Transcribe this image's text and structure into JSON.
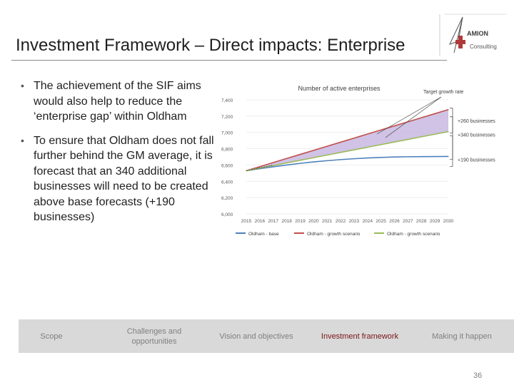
{
  "slide": {
    "title": "Investment Framework – Direct impacts: Enterprise",
    "page_number": "36"
  },
  "logo": {
    "name": "AMION",
    "tagline": "Consulting",
    "icon": "amion-compass-cross-logo",
    "accent": "#b03a3a"
  },
  "bullets": [
    "The achievement of the SIF aims would also help to reduce the ‘enterprise gap’ within Oldham",
    "To ensure that Oldham does not fall further behind the GM average, it is forecast that an 340 additional businesses will need to be created above base forecasts (+190 businesses)"
  ],
  "nav": {
    "items": [
      {
        "label": "Scope",
        "active": false
      },
      {
        "label": "Challenges and opportunities",
        "active": false
      },
      {
        "label": "Vision and objectives",
        "active": false
      },
      {
        "label": "Investment framework",
        "active": true
      },
      {
        "label": "Making it happen",
        "active": false
      }
    ]
  },
  "chart_data": {
    "type": "line",
    "title": "Number of active enterprises",
    "x": [
      "2015",
      "2016",
      "2017",
      "2018",
      "2019",
      "2020",
      "2021",
      "2022",
      "2023",
      "2024",
      "2025",
      "2026",
      "2027",
      "2028",
      "2029",
      "2030"
    ],
    "yticks": [
      "6,000",
      "6,200",
      "6,400",
      "6,600",
      "6,800",
      "7,000",
      "7,200",
      "7,400"
    ],
    "ylim": [
      6000,
      7400
    ],
    "grid": true,
    "legend_position": "bottom",
    "series": [
      {
        "name": "Oldham - base",
        "color": "#4f81bd",
        "values": [
          6530,
          6555,
          6578,
          6600,
          6620,
          6638,
          6653,
          6666,
          6677,
          6686,
          6693,
          6698,
          6701,
          6703,
          6704,
          6705
        ]
      },
      {
        "name": "Oldham - growth scenario",
        "color": "#c0504d",
        "values": [
          6530,
          6580,
          6630,
          6680,
          6730,
          6780,
          6830,
          6880,
          6930,
          6980,
          7030,
          7080,
          7130,
          7180,
          7230,
          7280
        ]
      },
      {
        "name": "Oldham - growth scenario",
        "color": "#9bbb59",
        "values": [
          6530,
          6562,
          6594,
          6626,
          6658,
          6690,
          6722,
          6754,
          6786,
          6818,
          6850,
          6882,
          6914,
          6946,
          6978,
          7010
        ]
      }
    ],
    "shaded_area": {
      "between": [
        1,
        2
      ],
      "color": "#c8b8e0"
    },
    "annotations": [
      {
        "text": "Target growth rate"
      },
      {
        "text": "+260 businesses"
      },
      {
        "text": "+340 businesses"
      },
      {
        "text": "+190 businesses"
      }
    ]
  }
}
